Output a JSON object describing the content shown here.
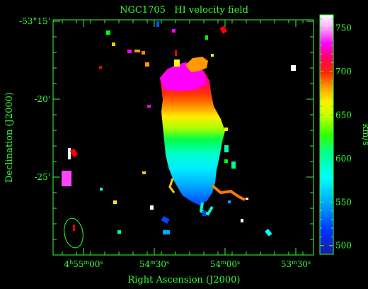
{
  "chart_data": {
    "type": "heatmap",
    "title": "NGC1705   HI velocity field",
    "xlabel": "Right Ascension (J2000)",
    "ylabel": "Declination (J2000)",
    "colorbar_label": "km/s",
    "x_ticks": [
      {
        "base": "4",
        "h": "h",
        "m": "55",
        "mm": "m",
        "s": "00",
        "ss": "s"
      },
      {
        "base": "",
        "h": "",
        "m": "54",
        "mm": "m",
        "s": "30",
        "ss": "s"
      },
      {
        "base": "",
        "h": "",
        "m": "54",
        "mm": "m",
        "s": "00",
        "ss": "s"
      },
      {
        "base": "",
        "h": "",
        "m": "53",
        "mm": "m",
        "s": "30",
        "ss": "s"
      }
    ],
    "y_ticks": [
      "-53°15'",
      "-20'",
      "-25'"
    ],
    "colorbar": {
      "min": 490,
      "max": 765,
      "ticks": [
        "500",
        "550",
        "600",
        "650",
        "700",
        "750"
      ],
      "tick_values": [
        500,
        550,
        600,
        650,
        700,
        750
      ]
    },
    "axis_color": "#33ff33",
    "background": "#000000"
  }
}
